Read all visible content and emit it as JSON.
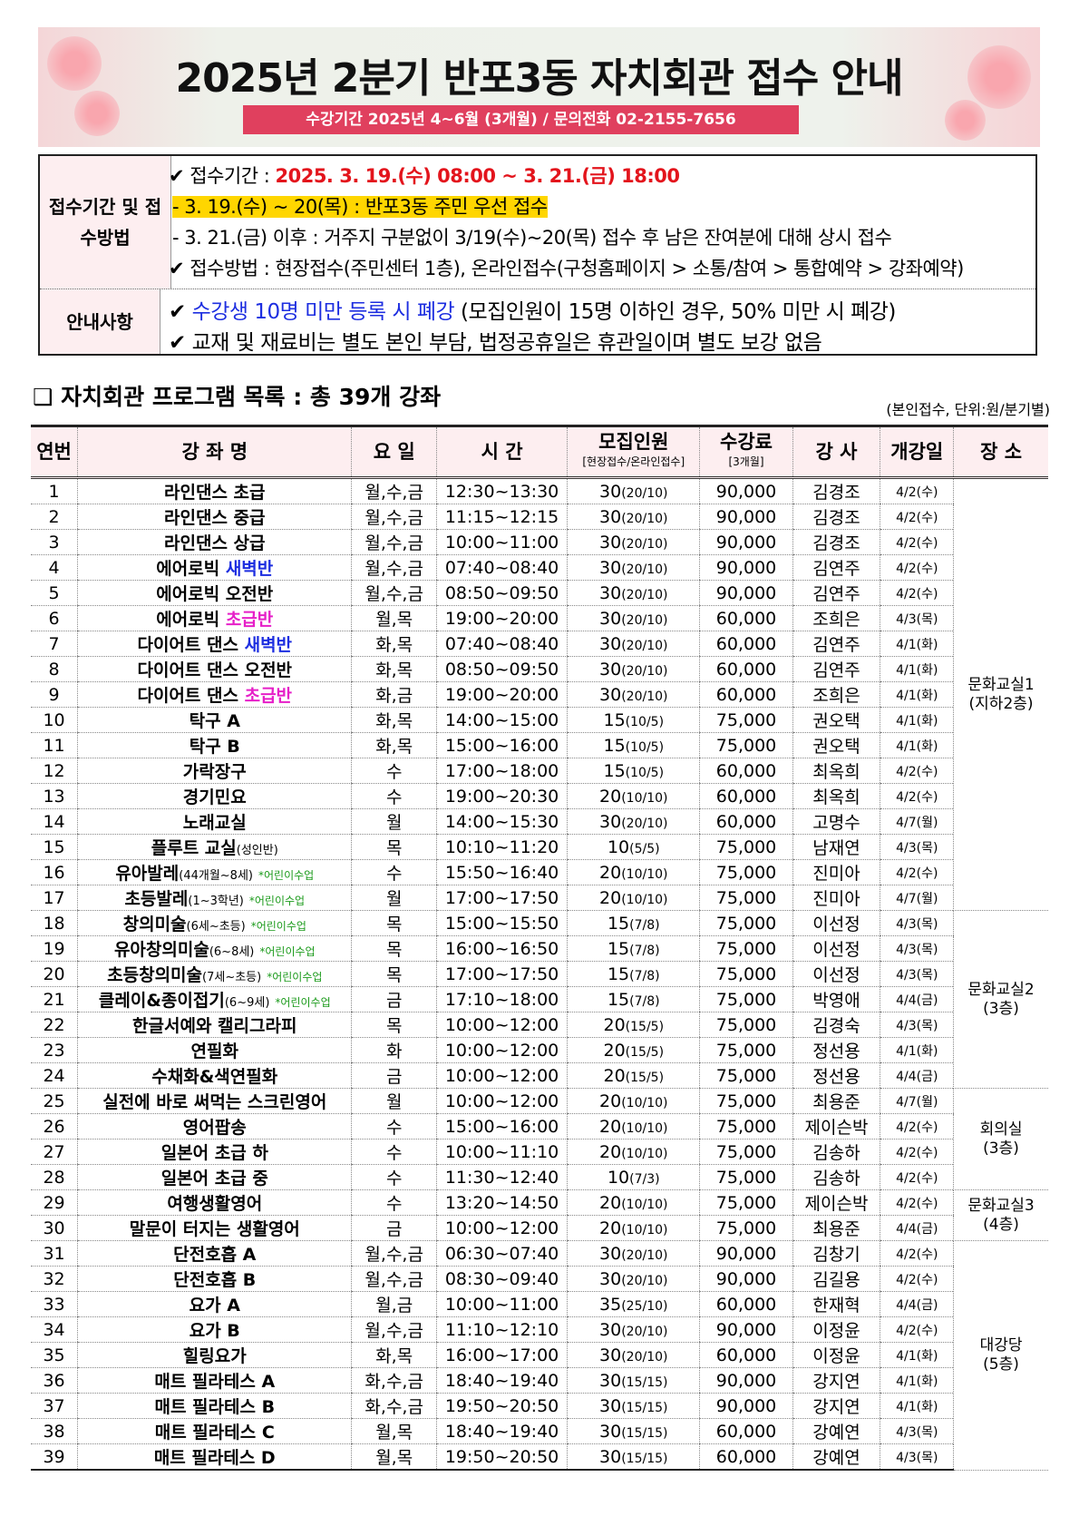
{
  "header": {
    "title": "2025년 2분기 반포3동 자치회관 접수 안내",
    "subtitle": "수강기간 2025년 4~6월 (3개월) / 문의전화 02-2155-7656"
  },
  "info": {
    "period_label": "접수기간 및 접수방법",
    "period_prefix": "✔ 접수기간 : ",
    "period_value": "2025. 3. 19.(수) 08:00 ~ 3. 21.(금) 18:00",
    "priority": "- 3. 19.(수) ~ 20(목) : 반포3동 주민 우선 접수",
    "after": "- 3. 21.(금) 이후 : 거주지 구분없이 3/19(수)~20(목) 접수 후 남은 잔여분에 대해 상시 접수",
    "method": "✔ 접수방법 : 현장접수(주민센터 1층), 온라인접수(구청홈페이지 > 소통/참여 > 통합예약 > 강좌예약)",
    "notice_label": "안내사항",
    "notice1_check": "✔ ",
    "notice1_blue": "수강생 10명 미만 등록 시 폐강",
    "notice1_rest": " (모집인원이 15명 이하인 경우, 50% 미만 시 폐강)",
    "notice2": "✔ 교재 및 재료비는 별도 본인 부담, 법정공휴일은 휴관일이며 별도 보강 없음"
  },
  "section": {
    "title": "❑ 자치회관 프로그램 목록 : 총 39개 강좌",
    "unit": "(본인접수, 단위:원/분기별)"
  },
  "colors": {
    "blue": "#1d2ee0",
    "magenta": "#e61fc8",
    "green": "#1a9a1a",
    "red": "#e3141c",
    "banner_bar": "#e0405e"
  },
  "table": {
    "headers": {
      "no": "연번",
      "name": "강 좌 명",
      "day": "요 일",
      "time": "시 간",
      "cap": "모집인원",
      "cap_sub": "[현장접수/온라인접수]",
      "fee": "수강료",
      "fee_sub": "[3개월]",
      "teacher": "강 사",
      "open": "개강일",
      "place": "장 소"
    },
    "places": [
      {
        "label": "문화교실1",
        "floor": "(지하2층)",
        "rows": 17
      },
      {
        "label": "문화교실2",
        "floor": "(3층)",
        "rows": 7
      },
      {
        "label": "회의실",
        "floor": "(3층)",
        "rows": 4
      },
      {
        "label": "문화교실3",
        "floor": "(4층)",
        "rows": 2
      },
      {
        "label": "대강당",
        "floor": "(5층)",
        "rows": 9
      }
    ],
    "rows": [
      {
        "no": "1",
        "name": "라인댄스 초급",
        "day": "월,수,금",
        "time": "12:30~13:30",
        "cap": "30",
        "cap_sub": "(20/10)",
        "fee": "90,000",
        "teacher": "김경조",
        "open": "4/2(수)"
      },
      {
        "no": "2",
        "name": "라인댄스 중급",
        "day": "월,수,금",
        "time": "11:15~12:15",
        "cap": "30",
        "cap_sub": "(20/10)",
        "fee": "90,000",
        "teacher": "김경조",
        "open": "4/2(수)"
      },
      {
        "no": "3",
        "name": "라인댄스 상급",
        "day": "월,수,금",
        "time": "10:00~11:00",
        "cap": "30",
        "cap_sub": "(20/10)",
        "fee": "90,000",
        "teacher": "김경조",
        "open": "4/2(수)"
      },
      {
        "no": "4",
        "name": "에어로빅 ",
        "hl": "새벽반",
        "hl_color": "blue",
        "day": "월,수,금",
        "time": "07:40~08:40",
        "cap": "30",
        "cap_sub": "(20/10)",
        "fee": "90,000",
        "teacher": "김연주",
        "open": "4/2(수)"
      },
      {
        "no": "5",
        "name": "에어로빅 오전반",
        "day": "월,수,금",
        "time": "08:50~09:50",
        "cap": "30",
        "cap_sub": "(20/10)",
        "fee": "90,000",
        "teacher": "김연주",
        "open": "4/2(수)"
      },
      {
        "no": "6",
        "name": "에어로빅 ",
        "hl": "초급반",
        "hl_color": "magenta",
        "day": "월,목",
        "time": "19:00~20:00",
        "cap": "30",
        "cap_sub": "(20/10)",
        "fee": "60,000",
        "teacher": "조희은",
        "open": "4/3(목)"
      },
      {
        "no": "7",
        "name": "다이어트 댄스 ",
        "hl": "새벽반",
        "hl_color": "blue",
        "day": "화,목",
        "time": "07:40~08:40",
        "cap": "30",
        "cap_sub": "(20/10)",
        "fee": "60,000",
        "teacher": "김연주",
        "open": "4/1(화)"
      },
      {
        "no": "8",
        "name": "다이어트 댄스 오전반",
        "day": "화,목",
        "time": "08:50~09:50",
        "cap": "30",
        "cap_sub": "(20/10)",
        "fee": "60,000",
        "teacher": "김연주",
        "open": "4/1(화)"
      },
      {
        "no": "9",
        "name": "다이어트 댄스 ",
        "hl": "초급반",
        "hl_color": "magenta",
        "day": "화,금",
        "time": "19:00~20:00",
        "cap": "30",
        "cap_sub": "(20/10)",
        "fee": "60,000",
        "teacher": "조희은",
        "open": "4/1(화)"
      },
      {
        "no": "10",
        "name": "탁구 A",
        "day": "화,목",
        "time": "14:00~15:00",
        "cap": "15",
        "cap_sub": "(10/5)",
        "fee": "75,000",
        "teacher": "권오택",
        "open": "4/1(화)"
      },
      {
        "no": "11",
        "name": "탁구 B",
        "day": "화,목",
        "time": "15:00~16:00",
        "cap": "15",
        "cap_sub": "(10/5)",
        "fee": "75,000",
        "teacher": "권오택",
        "open": "4/1(화)"
      },
      {
        "no": "12",
        "name": "가락장구",
        "day": "수",
        "time": "17:00~18:00",
        "cap": "15",
        "cap_sub": "(10/5)",
        "fee": "60,000",
        "teacher": "최옥희",
        "open": "4/2(수)"
      },
      {
        "no": "13",
        "name": "경기민요",
        "day": "수",
        "time": "19:00~20:30",
        "cap": "20",
        "cap_sub": "(10/10)",
        "fee": "60,000",
        "teacher": "최옥희",
        "open": "4/2(수)"
      },
      {
        "no": "14",
        "name": "노래교실",
        "day": "월",
        "time": "14:00~15:30",
        "cap": "30",
        "cap_sub": "(20/10)",
        "fee": "60,000",
        "teacher": "고명수",
        "open": "4/7(월)"
      },
      {
        "no": "15",
        "name": "플루트 교실",
        "sub": "(성인반)",
        "day": "목",
        "time": "10:10~11:20",
        "cap": "10",
        "cap_sub": "(5/5)",
        "fee": "75,000",
        "teacher": "남재연",
        "open": "4/3(목)"
      },
      {
        "no": "16",
        "name": "유아발레",
        "sub": "(44개월~8세)",
        "note": "*어린이수업",
        "day": "수",
        "time": "15:50~16:40",
        "cap": "20",
        "cap_sub": "(10/10)",
        "fee": "75,000",
        "teacher": "진미아",
        "open": "4/2(수)"
      },
      {
        "no": "17",
        "name": "초등발레",
        "sub": "(1~3학년)",
        "note": "*어린이수업",
        "day": "월",
        "time": "17:00~17:50",
        "cap": "20",
        "cap_sub": "(10/10)",
        "fee": "75,000",
        "teacher": "진미아",
        "open": "4/7(월)"
      },
      {
        "no": "18",
        "name": "창의미술",
        "sub": "(6세~초등)",
        "note": "*어린이수업",
        "day": "목",
        "time": "15:00~15:50",
        "cap": "15",
        "cap_sub": "(7/8)",
        "fee": "75,000",
        "teacher": "이선정",
        "open": "4/3(목)"
      },
      {
        "no": "19",
        "name": "유아창의미술",
        "sub": "(6~8세)",
        "note": "*어린이수업",
        "day": "목",
        "time": "16:00~16:50",
        "cap": "15",
        "cap_sub": "(7/8)",
        "fee": "75,000",
        "teacher": "이선정",
        "open": "4/3(목)"
      },
      {
        "no": "20",
        "name": "초등창의미술",
        "sub": "(7세~초등)",
        "note": "*어린이수업",
        "day": "목",
        "time": "17:00~17:50",
        "cap": "15",
        "cap_sub": "(7/8)",
        "fee": "75,000",
        "teacher": "이선정",
        "open": "4/3(목)"
      },
      {
        "no": "21",
        "name": "클레이&종이접기",
        "sub": "(6~9세)",
        "note": "*어린이수업",
        "day": "금",
        "time": "17:10~18:00",
        "cap": "15",
        "cap_sub": "(7/8)",
        "fee": "75,000",
        "teacher": "박영애",
        "open": "4/4(금)"
      },
      {
        "no": "22",
        "name": "한글서예와 캘리그라피",
        "day": "목",
        "time": "10:00~12:00",
        "cap": "20",
        "cap_sub": "(15/5)",
        "fee": "75,000",
        "teacher": "김경숙",
        "open": "4/3(목)"
      },
      {
        "no": "23",
        "name": "연필화",
        "day": "화",
        "time": "10:00~12:00",
        "cap": "20",
        "cap_sub": "(15/5)",
        "fee": "75,000",
        "teacher": "정선용",
        "open": "4/1(화)"
      },
      {
        "no": "24",
        "name": "수채화&색연필화",
        "day": "금",
        "time": "10:00~12:00",
        "cap": "20",
        "cap_sub": "(15/5)",
        "fee": "75,000",
        "teacher": "정선용",
        "open": "4/4(금)"
      },
      {
        "no": "25",
        "name": "실전에 바로 써먹는 스크린영어",
        "day": "월",
        "time": "10:00~12:00",
        "cap": "20",
        "cap_sub": "(10/10)",
        "fee": "75,000",
        "teacher": "최용준",
        "open": "4/7(월)"
      },
      {
        "no": "26",
        "name": "영어팝송",
        "day": "수",
        "time": "15:00~16:00",
        "cap": "20",
        "cap_sub": "(10/10)",
        "fee": "75,000",
        "teacher": "제이슨박",
        "open": "4/2(수)"
      },
      {
        "no": "27",
        "name": "일본어 초급 하",
        "day": "수",
        "time": "10:00~11:10",
        "cap": "20",
        "cap_sub": "(10/10)",
        "fee": "75,000",
        "teacher": "김송하",
        "open": "4/2(수)"
      },
      {
        "no": "28",
        "name": "일본어 초급 중",
        "day": "수",
        "time": "11:30~12:40",
        "cap": "10",
        "cap_sub": "(7/3)",
        "fee": "75,000",
        "teacher": "김송하",
        "open": "4/2(수)"
      },
      {
        "no": "29",
        "name": "여행생활영어",
        "day": "수",
        "time": "13:20~14:50",
        "cap": "20",
        "cap_sub": "(10/10)",
        "fee": "75,000",
        "teacher": "제이슨박",
        "open": "4/2(수)"
      },
      {
        "no": "30",
        "name": "말문이 터지는 생활영어",
        "day": "금",
        "time": "10:00~12:00",
        "cap": "20",
        "cap_sub": "(10/10)",
        "fee": "75,000",
        "teacher": "최용준",
        "open": "4/4(금)"
      },
      {
        "no": "31",
        "name": "단전호흡 A",
        "day": "월,수,금",
        "time": "06:30~07:40",
        "cap": "30",
        "cap_sub": "(20/10)",
        "fee": "90,000",
        "teacher": "김창기",
        "open": "4/2(수)"
      },
      {
        "no": "32",
        "name": "단전호흡 B",
        "day": "월,수,금",
        "time": "08:30~09:40",
        "cap": "30",
        "cap_sub": "(20/10)",
        "fee": "90,000",
        "teacher": "김길용",
        "open": "4/2(수)"
      },
      {
        "no": "33",
        "name": "요가 A",
        "day": "월,금",
        "time": "10:00~11:00",
        "cap": "35",
        "cap_sub": "(25/10)",
        "fee": "60,000",
        "teacher": "한재혁",
        "open": "4/4(금)"
      },
      {
        "no": "34",
        "name": "요가 B",
        "day": "월,수,금",
        "time": "11:10~12:10",
        "cap": "30",
        "cap_sub": "(20/10)",
        "fee": "90,000",
        "teacher": "이정윤",
        "open": "4/2(수)"
      },
      {
        "no": "35",
        "name": "힐링요가",
        "day": "화,목",
        "time": "16:00~17:00",
        "cap": "30",
        "cap_sub": "(20/10)",
        "fee": "60,000",
        "teacher": "이정윤",
        "open": "4/1(화)"
      },
      {
        "no": "36",
        "name": "매트 필라테스 A",
        "day": "화,수,금",
        "time": "18:40~19:40",
        "cap": "30",
        "cap_sub": "(15/15)",
        "fee": "90,000",
        "teacher": "강지연",
        "open": "4/1(화)"
      },
      {
        "no": "37",
        "name": "매트 필라테스 B",
        "day": "화,수,금",
        "time": "19:50~20:50",
        "cap": "30",
        "cap_sub": "(15/15)",
        "fee": "90,000",
        "teacher": "강지연",
        "open": "4/1(화)"
      },
      {
        "no": "38",
        "name": "매트 필라테스 C",
        "day": "월,목",
        "time": "18:40~19:40",
        "cap": "30",
        "cap_sub": "(15/15)",
        "fee": "60,000",
        "teacher": "강예연",
        "open": "4/3(목)"
      },
      {
        "no": "39",
        "name": "매트 필라테스 D",
        "day": "월,목",
        "time": "19:50~20:50",
        "cap": "30",
        "cap_sub": "(15/15)",
        "fee": "60,000",
        "teacher": "강예연",
        "open": "4/3(목)"
      }
    ]
  }
}
